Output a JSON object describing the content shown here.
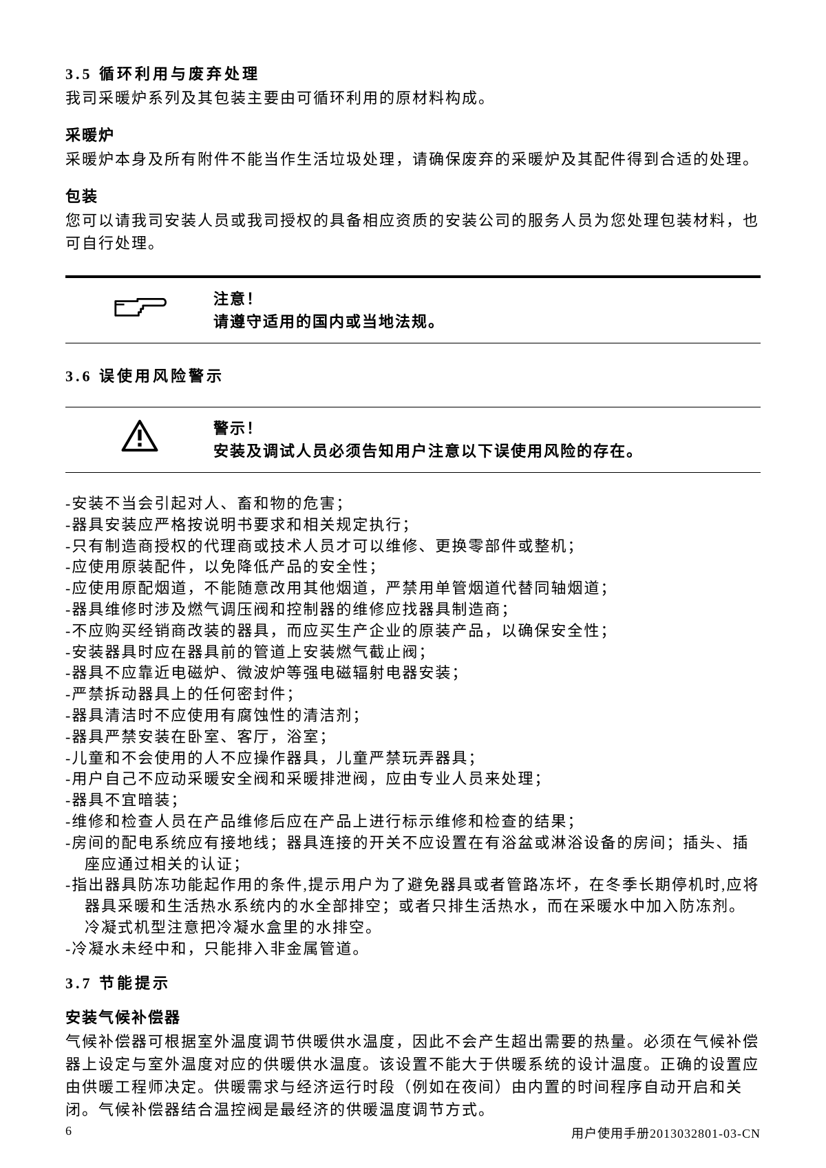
{
  "section35": {
    "heading": "3.5  循环利用与废弃处理",
    "intro": "我司采暖炉系列及其包装主要由可循环利用的原材料构成。",
    "sub1_heading": "采暖炉",
    "sub1_body": "采暖炉本身及所有附件不能当作生活垃圾处理，请确保废弃的采暖炉及其配件得到合适的处理。",
    "sub2_heading": "包装",
    "sub2_body": "您可以请我司安装人员或我司授权的具备相应资质的安装公司的服务人员为您处理包装材料，也可自行处理。"
  },
  "note_callout": {
    "line1": "注意！",
    "line2": "请遵守适用的国内或当地法规。"
  },
  "section36": {
    "heading": "3.6 误使用风险警示",
    "warn_line1": "警示！",
    "warn_line2": "安装及调试人员必须告知用户注意以下误使用风险的存在。",
    "bullets": [
      "-安装不当会引起对人、畜和物的危害；",
      "-器具安装应严格按说明书要求和相关规定执行；",
      "-只有制造商授权的代理商或技术人员才可以维修、更换零部件或整机；",
      "-应使用原装配件，以免降低产品的安全性；",
      "-应使用原配烟道，不能随意改用其他烟道，严禁用单管烟道代替同轴烟道；",
      "-器具维修时涉及燃气调压阀和控制器的维修应找器具制造商；",
      "-不应购买经销商改装的器具，而应买生产企业的原装产品，以确保安全性；",
      "-安装器具时应在器具前的管道上安装燃气截止阀；",
      "-器具不应靠近电磁炉、微波炉等强电磁辐射电器安装；",
      "-严禁拆动器具上的任何密封件；",
      "-器具清洁时不应使用有腐蚀性的清洁剂；",
      "-器具严禁安装在卧室、客厅，浴室；",
      "-儿童和不会使用的人不应操作器具，儿童严禁玩弄器具；",
      "-用户自己不应动采暖安全阀和采暖排泄阀，应由专业人员来处理；",
      "-器具不宜暗装；",
      "-维修和检查人员在产品维修后应在产品上进行标示维修和检查的结果；",
      "-房间的配电系统应有接地线；器具连接的开关不应设置在有浴盆或淋浴设备的房间；插头、插座应通过相关的认证；",
      "-指出器具防冻功能起作用的条件,提示用户为了避免器具或者管路冻坏，在冬季长期停机时,应将器具采暖和生活热水系统内的水全部排空；或者只排生活热水，而在采暖水中加入防冻剂。冷凝式机型注意把冷凝水盒里的水排空。",
      "-冷凝水未经中和，只能排入非金属管道。"
    ]
  },
  "section37": {
    "heading": "3.7  节能提示",
    "sub_heading": "安装气候补偿器",
    "body": "气候补偿器可根据室外温度调节供暖供水温度，因此不会产生超出需要的热量。必须在气候补偿器上设定与室外温度对应的供暖供水温度。该设置不能大于供暖系统的设计温度。正确的设置应由供暖工程师决定。供暖需求与经济运行时段（例如在夜间）由内置的时间程序自动开启和关闭。气候补偿器结合温控阀是最经济的供暖温度调节方式。"
  },
  "footer": {
    "page": "6",
    "docid": "用户使用手册2013032801-03-CN"
  }
}
